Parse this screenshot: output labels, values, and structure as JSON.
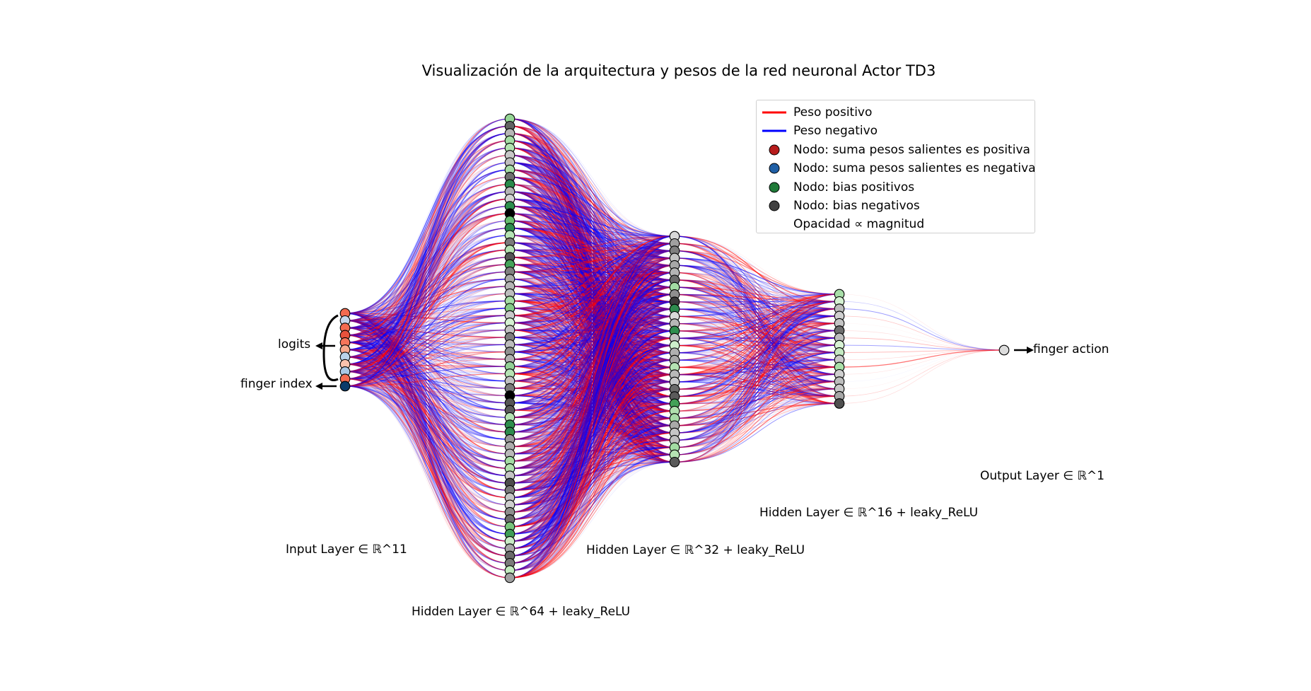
{
  "title": "Visualización de la arquitectura y pesos de la red neuronal Actor TD3",
  "layers": [
    {
      "label": "Input Layer ∈ ℝ^11",
      "size": 11,
      "node_colors": [
        "#f36b50",
        "#c6d7ec",
        "#f36b50",
        "#e8523c",
        "#f6755a",
        "#f8a98d",
        "#b9d3ea",
        "#f9c3ad",
        "#a9c9e5",
        "#f36b50",
        "#0b3b6a"
      ]
    },
    {
      "label": "Hidden Layer ∈ ℝ^64 + leaky_ReLU",
      "size": 64,
      "node_colors": [
        "#95d596",
        "#636363",
        "#b6b6b6",
        "#a5dda5",
        "#b2e2b0",
        "#c7c7c7",
        "#bdbdbd",
        "#a6dba6",
        "#6f6f6f",
        "#2a8a4a",
        "#b4b4b4",
        "#d2d2d2",
        "#2d8f4d",
        "#000000",
        "#66bd6e",
        "#2e8b4e",
        "#b7e4b5",
        "#7a7a7a",
        "#b3e1b1",
        "#555555",
        "#46a35a",
        "#808080",
        "#aaaaaa",
        "#b5b5b5",
        "#bdbdbd",
        "#a5dda5",
        "#83c987",
        "#c9c9c9",
        "#d5f0d2",
        "#c2c2c2",
        "#7d7d7d",
        "#bdbdbd",
        "#909090",
        "#b0b0b0",
        "#93d196",
        "#b6e3b4",
        "#c1c1c1",
        "#7a7a7a",
        "#000000",
        "#555555",
        "#5a5a5a",
        "#b4e1b2",
        "#2f8e4e",
        "#2e8b4e",
        "#9a9a9a",
        "#adadad",
        "#b9b9b9",
        "#a4dca4",
        "#b0e0ae",
        "#c5c5c5",
        "#4c4c4c",
        "#7a7a7a",
        "#c4c4c4",
        "#cfcfcf",
        "#8d8d8d",
        "#6c6c6c",
        "#79c47c",
        "#3f9e58",
        "#c8eac5",
        "#a7a7a7",
        "#6a6a6a",
        "#7a7a7a",
        "#c2ebbf",
        "#9f9f9f"
      ]
    },
    {
      "label": "Hidden Layer ∈ ℝ^32 + leaky_ReLU",
      "size": 32,
      "node_colors": [
        "#d9d9d9",
        "#a0a0a0",
        "#7f7f7f",
        "#c3c3c3",
        "#a7a7a7",
        "#b4b4b4",
        "#6b6b6b",
        "#a3dca3",
        "#8f8f8f",
        "#3b3b3b",
        "#2e8b4e",
        "#d9d9d9",
        "#b7b7b7",
        "#2f8e4e",
        "#c0c0c0",
        "#cdeecb",
        "#b0b0b0",
        "#a7a7a7",
        "#b5e2b3",
        "#b9b9b9",
        "#c9c9c9",
        "#6a6a6a",
        "#5b5b5b",
        "#43a158",
        "#b0e0ae",
        "#a6dba6",
        "#a9a9a9",
        "#c6c6c6",
        "#bfbfbf",
        "#a3dca3",
        "#b5e2b3",
        "#5a5a5a"
      ]
    },
    {
      "label": "Hidden Layer ∈ ℝ^16 + leaky_ReLU",
      "size": 16,
      "node_colors": [
        "#a8dea8",
        "#d5f0d2",
        "#bcbcbc",
        "#cfcfcf",
        "#c4c4c4",
        "#6f6f6f",
        "#bdbdbd",
        "#d8f2d5",
        "#c4e9c1",
        "#c9c9c9",
        "#a9dfa8",
        "#cfcfcf",
        "#bdbdbd",
        "#c7c7c7",
        "#a6a6a6",
        "#4f4f4f"
      ]
    },
    {
      "label": "Output Layer ∈ ℝ^1",
      "size": 1,
      "node_colors": [
        "#dcdcdc"
      ]
    }
  ],
  "annotations": {
    "logits": "logits",
    "finger_index": "finger index",
    "finger_action": "finger action"
  },
  "colors": {
    "positive": "#ff0000",
    "negative": "#0000ff"
  },
  "legend": [
    {
      "type": "line",
      "color": "#ff0000",
      "label": "Peso positivo"
    },
    {
      "type": "line",
      "color": "#0000ff",
      "label": "Peso negativo"
    },
    {
      "type": "dot",
      "color": "#b71c1c",
      "label": "Nodo: suma pesos salientes es positiva"
    },
    {
      "type": "dot",
      "color": "#1f5fa5",
      "label": "Nodo: suma pesos salientes es negativa"
    },
    {
      "type": "dot",
      "color": "#1f7a38",
      "label": "Nodo: bias positivos"
    },
    {
      "type": "dot",
      "color": "#404040",
      "label": "Nodo: bias negativos"
    },
    {
      "type": "none",
      "color": "",
      "label": "Opacidad ∝ magnitud"
    }
  ]
}
